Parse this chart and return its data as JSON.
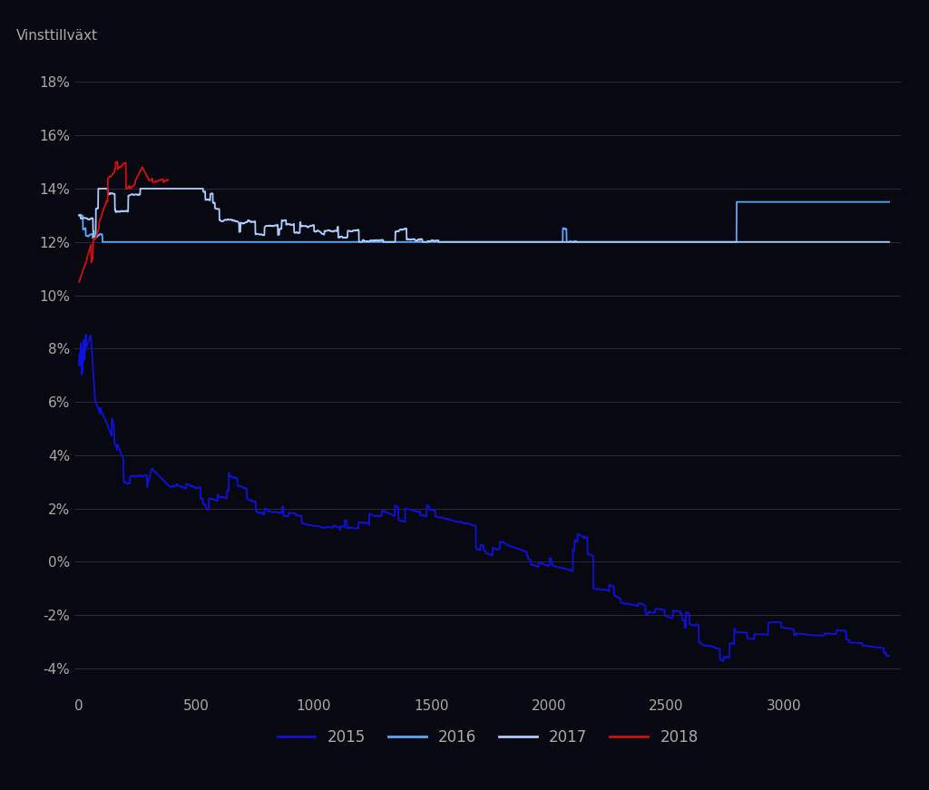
{
  "ylabel": "Vinsttillväxt",
  "background_color": "#080810",
  "plot_bg_color": "#080810",
  "grid_color": "#2a2a3a",
  "text_color": "#aaaaaa",
  "ylim": [
    -0.05,
    0.19
  ],
  "xlim": [
    -20,
    3500
  ],
  "yticks": [
    -0.04,
    -0.02,
    0.0,
    0.02,
    0.04,
    0.06,
    0.08,
    0.1,
    0.12,
    0.14,
    0.16,
    0.18
  ],
  "xticks": [
    0,
    500,
    1000,
    1500,
    2000,
    2500,
    3000
  ],
  "series_colors": {
    "2015": "#1010dd",
    "2016": "#55aaff",
    "2017": "#aaccff",
    "2018": "#cc1111"
  },
  "legend_labels": [
    "2015",
    "2016",
    "2017",
    "2018"
  ],
  "n_total": 3450,
  "n_2018": 380
}
